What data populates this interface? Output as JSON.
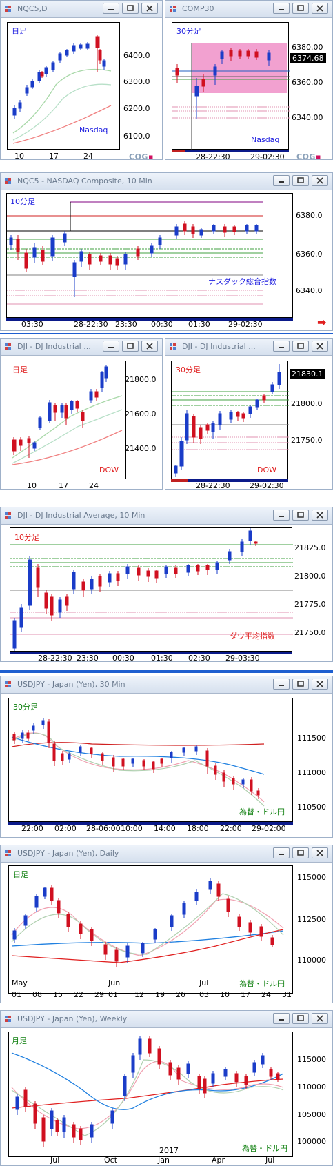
{
  "windows": {
    "w1": {
      "title": "NQC5,D",
      "badge": "日足",
      "footer": "Nasdaq",
      "yticks": [
        "6400.0",
        "6300.0",
        "6200.0",
        "6100.0"
      ],
      "xticks": [
        "10",
        "17",
        "24"
      ]
    },
    "w2": {
      "title": "COMP30",
      "badge": "30分足",
      "footer": "Nasdaq",
      "yticks": [
        "6380.00",
        "6360.00",
        "6340.00"
      ],
      "price": "6374.68",
      "xticks": [
        "28-22:30",
        "29-02:30"
      ]
    },
    "w3": {
      "title": "NQC5 - NASDAQ Composite, 10 Min",
      "badge": "10分足",
      "footer": "ナスダック総合指数",
      "yticks": [
        "6380.0",
        "6360.0",
        "6340.0"
      ],
      "xticks": [
        "03:30",
        "28-22:30",
        "23:30",
        "00:30",
        "01:30",
        "29-02:30"
      ]
    },
    "w4": {
      "title": "DJI - DJ Industrial ...",
      "badge": "日足",
      "footer": "DOW",
      "yticks": [
        "21800.0",
        "21600.0",
        "21400.0"
      ],
      "xticks": [
        "10",
        "17",
        "24"
      ]
    },
    "w5": {
      "title": "DJI - DJ Industrial ...",
      "badge": "30分足",
      "footer": "DOW",
      "yticks": [
        "21800.0",
        "21750.0"
      ],
      "price": "21830.1",
      "xticks": [
        "28-22:30",
        "29-02:30"
      ]
    },
    "w6": {
      "title": "DJI - DJ Industrial Average, 10 Min",
      "badge": "10分足",
      "footer": "ダウ平均指数",
      "yticks": [
        "21825.0",
        "21800.0",
        "21775.0",
        "21750.0"
      ],
      "xticks": [
        "28-22:30",
        "23:30",
        "00:30",
        "01:30",
        "02:30",
        "29-03:30"
      ]
    },
    "w7": {
      "title": "USDJPY - Japan (Yen), 30 Min",
      "badge": "30分足",
      "footer": "為替・ドル円",
      "yticks": [
        "111500",
        "111000",
        "110500"
      ],
      "xticks": [
        "22:00",
        "02:00",
        "28-06:00",
        "10:00",
        "14:00",
        "18:00",
        "22:00",
        "29-02:00"
      ]
    },
    "w8": {
      "title": "USDJPY - Japan (Yen), Daily",
      "badge": "日足",
      "footer": "為替・ドル円",
      "yticks": [
        "115000",
        "112500",
        "110000"
      ],
      "months": [
        "May",
        "Jun",
        "Jul"
      ],
      "xticks": [
        "01",
        "08",
        "15",
        "22",
        "29",
        "01",
        "12",
        "19",
        "26",
        "03",
        "10",
        "17",
        "24",
        "31"
      ]
    },
    "w9": {
      "title": "USDJPY - Japan (Yen), Weekly",
      "badge": "月足",
      "footer": "為替・ドル円",
      "yticks": [
        "115000",
        "110000",
        "105000",
        "100000"
      ],
      "year": "2017",
      "xticks": [
        "Jul",
        "Oct",
        "Jan",
        "Apr",
        "Jul"
      ]
    }
  },
  "logo": "CQG",
  "colors": {
    "up": "#1a3cc8",
    "down": "#d01020",
    "zone": "#f090c8",
    "navy": "#0b1a8a"
  }
}
